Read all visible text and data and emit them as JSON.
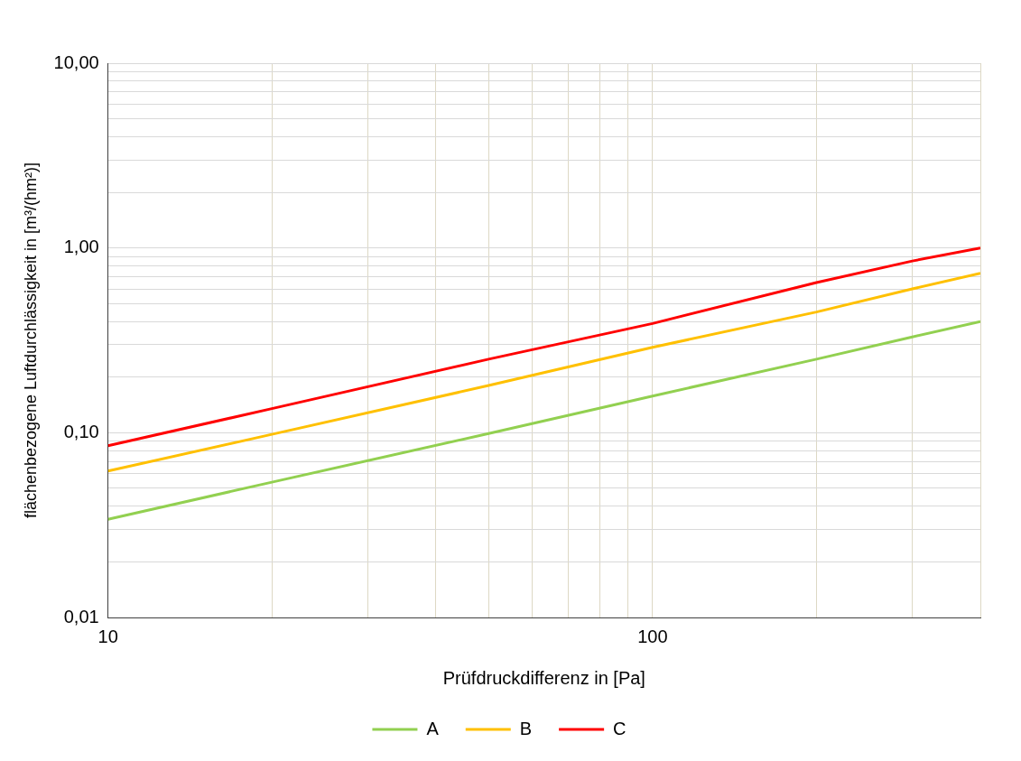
{
  "chart_data": {
    "type": "line",
    "xlabel": "Prüfdruckdifferenz in [Pa]",
    "ylabel": "flächenbezogene Luftdurchlässigkeit in [m³/(hm²)]",
    "x": [
      10,
      20,
      50,
      100,
      200,
      300,
      400
    ],
    "series": [
      {
        "name": "A",
        "color": "#92d050",
        "values": [
          0.034,
          0.054,
          0.099,
          0.158,
          0.25,
          0.33,
          0.4
        ]
      },
      {
        "name": "B",
        "color": "#ffc000",
        "values": [
          0.062,
          0.098,
          0.18,
          0.29,
          0.45,
          0.6,
          0.73
        ]
      },
      {
        "name": "C",
        "color": "#ff0000",
        "values": [
          0.085,
          0.135,
          0.25,
          0.39,
          0.65,
          0.85,
          1.0
        ]
      }
    ],
    "log": "xy",
    "xlim": [
      10,
      400
    ],
    "xticks": [
      10,
      {
        "value": 20,
        "label": null
      },
      {
        "value": 30,
        "label": null
      },
      {
        "value": 40,
        "label": null
      },
      {
        "value": 50,
        "label": null
      },
      {
        "value": 60,
        "label": null
      },
      {
        "value": 70,
        "label": null
      },
      {
        "value": 80,
        "label": null
      },
      {
        "value": 90,
        "label": null
      },
      100,
      {
        "value": 200,
        "label": null
      },
      {
        "value": 300,
        "label": null
      },
      {
        "value": 400,
        "label": null
      }
    ],
    "ylim": [
      0.01,
      10
    ],
    "yticks": [
      {
        "value": 0.01,
        "label": "0,01"
      },
      {
        "value": 0.02,
        "label": null
      },
      {
        "value": 0.03,
        "label": null
      },
      {
        "value": 0.04,
        "label": null
      },
      {
        "value": 0.05,
        "label": null
      },
      {
        "value": 0.06,
        "label": null
      },
      {
        "value": 0.07,
        "label": null
      },
      {
        "value": 0.08,
        "label": null
      },
      {
        "value": 0.09,
        "label": null
      },
      {
        "value": 0.1,
        "label": "0,10"
      },
      {
        "value": 0.2,
        "label": null
      },
      {
        "value": 0.3,
        "label": null
      },
      {
        "value": 0.4,
        "label": null
      },
      {
        "value": 0.5,
        "label": null
      },
      {
        "value": 0.6,
        "label": null
      },
      {
        "value": 0.7,
        "label": null
      },
      {
        "value": 0.8,
        "label": null
      },
      {
        "value": 0.9,
        "label": null
      },
      {
        "value": 1,
        "label": "1,00"
      },
      {
        "value": 2,
        "label": null
      },
      {
        "value": 3,
        "label": null
      },
      {
        "value": 4,
        "label": null
      },
      {
        "value": 5,
        "label": null
      },
      {
        "value": 6,
        "label": null
      },
      {
        "value": 7,
        "label": null
      },
      {
        "value": 8,
        "label": null
      },
      {
        "value": 9,
        "label": null
      },
      {
        "value": 10,
        "label": "10,00"
      }
    ],
    "grid": true,
    "legend": "bottom",
    "marker": "none",
    "line_style": "solid"
  }
}
